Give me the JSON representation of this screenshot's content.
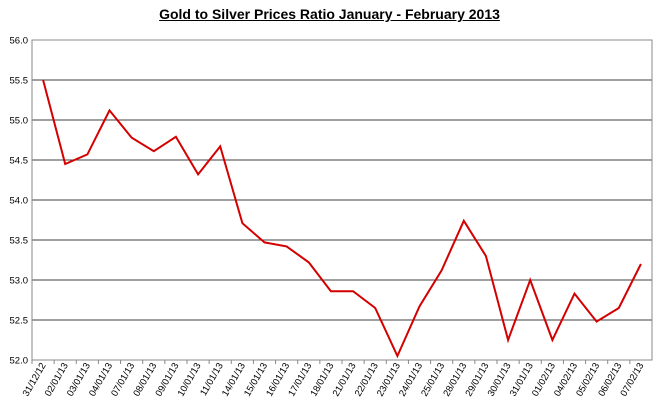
{
  "chart_data": {
    "type": "line",
    "title": "Gold to Silver Prices Ratio January - February  2013",
    "categories": [
      "31/12/12",
      "02/01/13",
      "03/01/13",
      "04/01/13",
      "07/01/13",
      "08/01/13",
      "09/01/13",
      "10/01/13",
      "11/01/13",
      "14/01/13",
      "15/01/13",
      "16/01/13",
      "17/01/13",
      "18/01/13",
      "21/01/13",
      "22/01/13",
      "23/01/13",
      "24/01/13",
      "25/01/13",
      "28/01/13",
      "29/01/13",
      "30/01/13",
      "31/01/13",
      "01/02/13",
      "04/02/13",
      "05/02/13",
      "06/02/13",
      "07/02/13"
    ],
    "series": [
      {
        "values": [
          55.5,
          54.45,
          54.57,
          55.12,
          54.78,
          54.61,
          54.79,
          54.32,
          54.67,
          53.71,
          53.47,
          53.42,
          53.22,
          52.86,
          52.86,
          52.65,
          52.05,
          52.67,
          53.12,
          53.74,
          53.3,
          52.25,
          53.0,
          52.25,
          52.83,
          52.48,
          52.65,
          53.2
        ],
        "color": "#d40000"
      }
    ],
    "ylim": [
      52.0,
      56.0
    ],
    "yticks": [
      "52.0",
      "52.5",
      "53.0",
      "53.5",
      "54.0",
      "54.5",
      "55.0",
      "55.5",
      "56.0"
    ],
    "grid": true,
    "legend": "none"
  }
}
